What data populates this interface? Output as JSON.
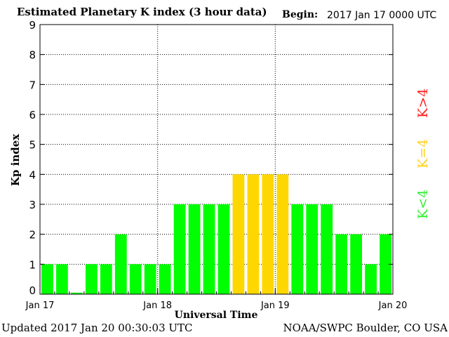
{
  "header": {
    "title": "Estimated Planetary K index (3 hour data)",
    "begin_label": "Begin:",
    "begin_value": "2017 Jan 17 0000 UTC"
  },
  "footer": {
    "updated": "Updated 2017 Jan 20 00:30:03 UTC",
    "source": "NOAA/SWPC Boulder, CO USA"
  },
  "legend": {
    "items": [
      {
        "label": "K<4",
        "color": "#33ee33"
      },
      {
        "label": "K=4",
        "color": "#ffd21e"
      },
      {
        "label": "K>4",
        "color": "#ff2020"
      }
    ]
  },
  "colors": {
    "low": "#00ff00",
    "equal": "#ffd700",
    "high": "#ff0000"
  },
  "chart_data": {
    "type": "bar",
    "title": "Estimated Planetary K index (3 hour data)",
    "xlabel": "Universal Time",
    "ylabel": "Kp index",
    "ylim": [
      0,
      9
    ],
    "yticks": [
      0,
      1,
      2,
      3,
      4,
      5,
      6,
      7,
      8,
      9
    ],
    "xticks": [
      "Jan 17",
      "Jan 18",
      "Jan 19",
      "Jan 20"
    ],
    "grid": true,
    "interval_hours": 3,
    "values": [
      1,
      1,
      0.05,
      1,
      1,
      2,
      1,
      1,
      1,
      3,
      3,
      3,
      3,
      4,
      4,
      4,
      4,
      3,
      3,
      3,
      2,
      2,
      1,
      2
    ]
  }
}
